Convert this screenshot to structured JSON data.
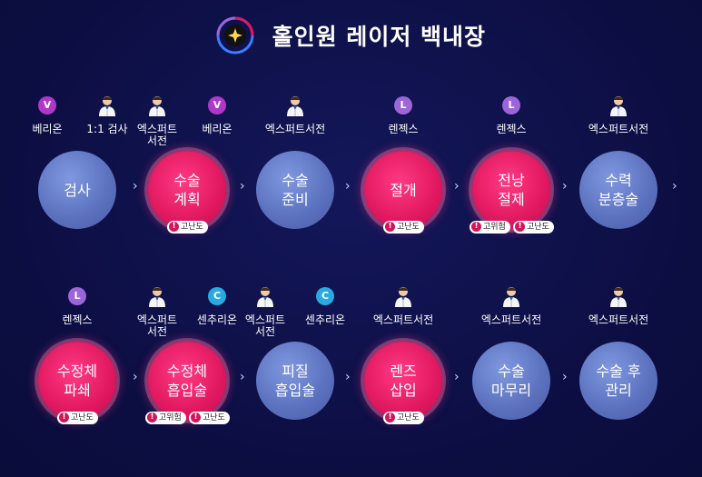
{
  "title": "홀인원 레이저 백내장",
  "arrow": "›",
  "doctor_icon": "doctor-icon",
  "row1": [
    {
      "step": [
        "검사"
      ],
      "tags": [
        {
          "kind": "V",
          "label": "베리온"
        },
        {
          "kind": "doc",
          "label": "1:1 검사"
        }
      ],
      "style": "blue",
      "badges": []
    },
    {
      "step": [
        "수술",
        "계획"
      ],
      "tags": [
        {
          "kind": "doc",
          "label": "엑스퍼트\n서전"
        },
        {
          "kind": "V",
          "label": "베리온"
        }
      ],
      "style": "pink",
      "badges": [
        "고난도"
      ]
    },
    {
      "step": [
        "수술",
        "준비"
      ],
      "tags": [
        {
          "kind": "doc",
          "label": "엑스퍼트서전"
        }
      ],
      "style": "blue",
      "badges": []
    },
    {
      "step": [
        "절개"
      ],
      "tags": [
        {
          "kind": "L",
          "label": "렌젝스"
        }
      ],
      "style": "pink",
      "badges": [
        "고난도"
      ]
    },
    {
      "step": [
        "전낭",
        "절제"
      ],
      "tags": [
        {
          "kind": "L",
          "label": "렌젝스"
        }
      ],
      "style": "pink",
      "badges": [
        "고위험",
        "고난도"
      ]
    },
    {
      "step": [
        "수력",
        "분층술"
      ],
      "tags": [
        {
          "kind": "doc",
          "label": "엑스퍼트서전"
        }
      ],
      "style": "blue",
      "badges": []
    }
  ],
  "row2": [
    {
      "step": [
        "수정체",
        "파쇄"
      ],
      "tags": [
        {
          "kind": "L",
          "label": "렌젝스"
        }
      ],
      "style": "pink",
      "badges": [
        "고난도"
      ]
    },
    {
      "step": [
        "수정체",
        "흡입술"
      ],
      "tags": [
        {
          "kind": "doc",
          "label": "엑스퍼트\n서전"
        },
        {
          "kind": "C",
          "label": "센추리온"
        }
      ],
      "style": "pink",
      "badges": [
        "고위험",
        "고난도"
      ]
    },
    {
      "step": [
        "피질",
        "흡입술"
      ],
      "tags": [
        {
          "kind": "doc",
          "label": "엑스퍼트\n서전"
        },
        {
          "kind": "C",
          "label": "센추리온"
        }
      ],
      "style": "blue",
      "badges": []
    },
    {
      "step": [
        "렌즈",
        "삽입"
      ],
      "tags": [
        {
          "kind": "doc",
          "label": "엑스퍼트서전"
        }
      ],
      "style": "pink",
      "badges": [
        "고난도"
      ]
    },
    {
      "step": [
        "수술",
        "마무리"
      ],
      "tags": [
        {
          "kind": "doc",
          "label": "엑스퍼트서전"
        }
      ],
      "style": "blue",
      "badges": []
    },
    {
      "step": [
        "수술 후",
        "관리"
      ],
      "tags": [
        {
          "kind": "doc",
          "label": "엑스퍼트서전"
        }
      ],
      "style": "blue",
      "badges": []
    }
  ],
  "colors": {
    "background": "#0d0f45",
    "pink": "#e0185f",
    "blue": "#5d73c0",
    "verion": "#b038c9",
    "lenx": "#9c65d8",
    "centurion": "#2aa8e0"
  }
}
